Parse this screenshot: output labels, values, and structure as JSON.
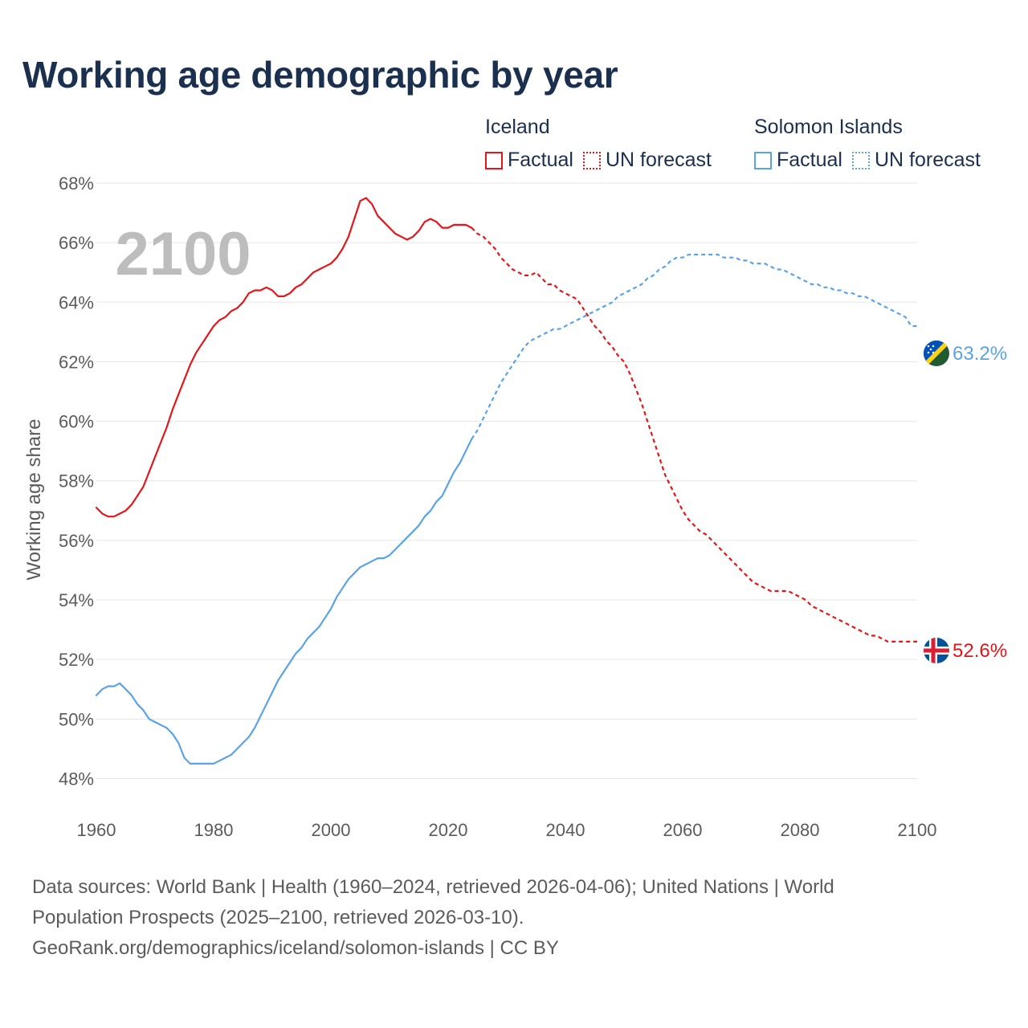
{
  "title": "Working age demographic by year",
  "legend": {
    "groups": [
      {
        "country": "Iceland",
        "color": "#e3161b",
        "factual_label": "Factual",
        "forecast_label": "UN forecast"
      },
      {
        "country": "Solomon Islands",
        "color": "#5ba3e6",
        "factual_label": "Factual",
        "forecast_label": "UN forecast"
      }
    ]
  },
  "year_watermark": "2100",
  "sources": {
    "line1": "Data sources: World Bank | Health (1960–2024, retrieved 2026-04-06); United Nations | World",
    "line2": "Population Prospects (2025–2100, retrieved 2026-03-10).",
    "line3": "GeoRank.org/demographics/iceland/solomon-islands | CC BY"
  },
  "chart_data": {
    "type": "line",
    "title": "Working age demographic by year",
    "xlabel": "",
    "ylabel": "Working age share",
    "xlim": [
      1960,
      2100
    ],
    "ylim": [
      47.5,
      68
    ],
    "x_ticks": [
      1960,
      1980,
      2000,
      2020,
      2040,
      2060,
      2080,
      2100
    ],
    "x_tick_labels": [
      "1960",
      "1980",
      "2000",
      "2020",
      "2040",
      "2060",
      "2080",
      "2100"
    ],
    "y_ticks": [
      48,
      50,
      52,
      54,
      56,
      58,
      60,
      62,
      64,
      66,
      68
    ],
    "y_tick_labels": [
      "48%",
      "50%",
      "52%",
      "54%",
      "56%",
      "58%",
      "60%",
      "62%",
      "64%",
      "66%",
      "68%"
    ],
    "grid": true,
    "factual_end_year": 2024,
    "series": [
      {
        "name": "Iceland",
        "color": "#e3161b",
        "end_label": "52.6%",
        "flag": "iceland-flag",
        "points": [
          [
            1960,
            57.1
          ],
          [
            1961,
            56.9
          ],
          [
            1962,
            56.8
          ],
          [
            1963,
            56.8
          ],
          [
            1964,
            56.9
          ],
          [
            1965,
            57.0
          ],
          [
            1966,
            57.2
          ],
          [
            1967,
            57.5
          ],
          [
            1968,
            57.8
          ],
          [
            1969,
            58.3
          ],
          [
            1970,
            58.8
          ],
          [
            1971,
            59.3
          ],
          [
            1972,
            59.8
          ],
          [
            1973,
            60.4
          ],
          [
            1974,
            60.9
          ],
          [
            1975,
            61.4
          ],
          [
            1976,
            61.9
          ],
          [
            1977,
            62.3
          ],
          [
            1978,
            62.6
          ],
          [
            1979,
            62.9
          ],
          [
            1980,
            63.2
          ],
          [
            1981,
            63.4
          ],
          [
            1982,
            63.5
          ],
          [
            1983,
            63.7
          ],
          [
            1984,
            63.8
          ],
          [
            1985,
            64.0
          ],
          [
            1986,
            64.3
          ],
          [
            1987,
            64.4
          ],
          [
            1988,
            64.4
          ],
          [
            1989,
            64.5
          ],
          [
            1990,
            64.4
          ],
          [
            1991,
            64.2
          ],
          [
            1992,
            64.2
          ],
          [
            1993,
            64.3
          ],
          [
            1994,
            64.5
          ],
          [
            1995,
            64.6
          ],
          [
            1996,
            64.8
          ],
          [
            1997,
            65.0
          ],
          [
            1998,
            65.1
          ],
          [
            1999,
            65.2
          ],
          [
            2000,
            65.3
          ],
          [
            2001,
            65.5
          ],
          [
            2002,
            65.8
          ],
          [
            2003,
            66.2
          ],
          [
            2004,
            66.8
          ],
          [
            2005,
            67.4
          ],
          [
            2006,
            67.5
          ],
          [
            2007,
            67.3
          ],
          [
            2008,
            66.9
          ],
          [
            2009,
            66.7
          ],
          [
            2010,
            66.5
          ],
          [
            2011,
            66.3
          ],
          [
            2012,
            66.2
          ],
          [
            2013,
            66.1
          ],
          [
            2014,
            66.2
          ],
          [
            2015,
            66.4
          ],
          [
            2016,
            66.7
          ],
          [
            2017,
            66.8
          ],
          [
            2018,
            66.7
          ],
          [
            2019,
            66.5
          ],
          [
            2020,
            66.5
          ],
          [
            2021,
            66.6
          ],
          [
            2022,
            66.6
          ],
          [
            2023,
            66.6
          ],
          [
            2024,
            66.5
          ],
          [
            2025,
            66.3
          ],
          [
            2026,
            66.2
          ],
          [
            2027,
            66.0
          ],
          [
            2028,
            65.8
          ],
          [
            2029,
            65.5
          ],
          [
            2030,
            65.3
          ],
          [
            2031,
            65.1
          ],
          [
            2032,
            65.0
          ],
          [
            2033,
            64.9
          ],
          [
            2034,
            64.9
          ],
          [
            2035,
            65.0
          ],
          [
            2036,
            64.8
          ],
          [
            2037,
            64.6
          ],
          [
            2038,
            64.6
          ],
          [
            2039,
            64.4
          ],
          [
            2040,
            64.3
          ],
          [
            2041,
            64.2
          ],
          [
            2042,
            64.1
          ],
          [
            2043,
            63.8
          ],
          [
            2044,
            63.5
          ],
          [
            2045,
            63.2
          ],
          [
            2046,
            63.0
          ],
          [
            2047,
            62.7
          ],
          [
            2048,
            62.5
          ],
          [
            2049,
            62.2
          ],
          [
            2050,
            62.0
          ],
          [
            2051,
            61.6
          ],
          [
            2052,
            61.1
          ],
          [
            2053,
            60.6
          ],
          [
            2054,
            60.0
          ],
          [
            2055,
            59.4
          ],
          [
            2056,
            58.8
          ],
          [
            2057,
            58.2
          ],
          [
            2058,
            57.8
          ],
          [
            2059,
            57.4
          ],
          [
            2060,
            57.0
          ],
          [
            2061,
            56.7
          ],
          [
            2062,
            56.5
          ],
          [
            2063,
            56.3
          ],
          [
            2064,
            56.2
          ],
          [
            2065,
            56.0
          ],
          [
            2066,
            55.8
          ],
          [
            2067,
            55.6
          ],
          [
            2068,
            55.4
          ],
          [
            2069,
            55.2
          ],
          [
            2070,
            55.0
          ],
          [
            2071,
            54.8
          ],
          [
            2072,
            54.6
          ],
          [
            2073,
            54.5
          ],
          [
            2074,
            54.4
          ],
          [
            2075,
            54.3
          ],
          [
            2076,
            54.3
          ],
          [
            2077,
            54.3
          ],
          [
            2078,
            54.3
          ],
          [
            2079,
            54.2
          ],
          [
            2080,
            54.1
          ],
          [
            2081,
            54.0
          ],
          [
            2082,
            53.8
          ],
          [
            2083,
            53.7
          ],
          [
            2084,
            53.6
          ],
          [
            2085,
            53.5
          ],
          [
            2086,
            53.4
          ],
          [
            2087,
            53.3
          ],
          [
            2088,
            53.2
          ],
          [
            2089,
            53.1
          ],
          [
            2090,
            53.0
          ],
          [
            2091,
            52.9
          ],
          [
            2092,
            52.8
          ],
          [
            2093,
            52.8
          ],
          [
            2094,
            52.7
          ],
          [
            2095,
            52.6
          ],
          [
            2096,
            52.6
          ],
          [
            2097,
            52.6
          ],
          [
            2098,
            52.6
          ],
          [
            2099,
            52.6
          ],
          [
            2100,
            52.6
          ]
        ]
      },
      {
        "name": "Solomon Islands",
        "color": "#5ba3e6",
        "end_label": "63.2%",
        "flag": "solomon-islands-flag",
        "points": [
          [
            1960,
            50.8
          ],
          [
            1961,
            51.0
          ],
          [
            1962,
            51.1
          ],
          [
            1963,
            51.1
          ],
          [
            1964,
            51.2
          ],
          [
            1965,
            51.0
          ],
          [
            1966,
            50.8
          ],
          [
            1967,
            50.5
          ],
          [
            1968,
            50.3
          ],
          [
            1969,
            50.0
          ],
          [
            1970,
            49.9
          ],
          [
            1971,
            49.8
          ],
          [
            1972,
            49.7
          ],
          [
            1973,
            49.5
          ],
          [
            1974,
            49.2
          ],
          [
            1975,
            48.7
          ],
          [
            1976,
            48.5
          ],
          [
            1977,
            48.5
          ],
          [
            1978,
            48.5
          ],
          [
            1979,
            48.5
          ],
          [
            1980,
            48.5
          ],
          [
            1981,
            48.6
          ],
          [
            1982,
            48.7
          ],
          [
            1983,
            48.8
          ],
          [
            1984,
            49.0
          ],
          [
            1985,
            49.2
          ],
          [
            1986,
            49.4
          ],
          [
            1987,
            49.7
          ],
          [
            1988,
            50.1
          ],
          [
            1989,
            50.5
          ],
          [
            1990,
            50.9
          ],
          [
            1991,
            51.3
          ],
          [
            1992,
            51.6
          ],
          [
            1993,
            51.9
          ],
          [
            1994,
            52.2
          ],
          [
            1995,
            52.4
          ],
          [
            1996,
            52.7
          ],
          [
            1997,
            52.9
          ],
          [
            1998,
            53.1
          ],
          [
            1999,
            53.4
          ],
          [
            2000,
            53.7
          ],
          [
            2001,
            54.1
          ],
          [
            2002,
            54.4
          ],
          [
            2003,
            54.7
          ],
          [
            2004,
            54.9
          ],
          [
            2005,
            55.1
          ],
          [
            2006,
            55.2
          ],
          [
            2007,
            55.3
          ],
          [
            2008,
            55.4
          ],
          [
            2009,
            55.4
          ],
          [
            2010,
            55.5
          ],
          [
            2011,
            55.7
          ],
          [
            2012,
            55.9
          ],
          [
            2013,
            56.1
          ],
          [
            2014,
            56.3
          ],
          [
            2015,
            56.5
          ],
          [
            2016,
            56.8
          ],
          [
            2017,
            57.0
          ],
          [
            2018,
            57.3
          ],
          [
            2019,
            57.5
          ],
          [
            2020,
            57.9
          ],
          [
            2021,
            58.3
          ],
          [
            2022,
            58.6
          ],
          [
            2023,
            59.0
          ],
          [
            2024,
            59.4
          ],
          [
            2025,
            59.7
          ],
          [
            2026,
            60.1
          ],
          [
            2027,
            60.5
          ],
          [
            2028,
            60.9
          ],
          [
            2029,
            61.3
          ],
          [
            2030,
            61.6
          ],
          [
            2031,
            61.9
          ],
          [
            2032,
            62.2
          ],
          [
            2033,
            62.5
          ],
          [
            2034,
            62.7
          ],
          [
            2035,
            62.8
          ],
          [
            2036,
            62.9
          ],
          [
            2037,
            63.0
          ],
          [
            2038,
            63.1
          ],
          [
            2039,
            63.1
          ],
          [
            2040,
            63.2
          ],
          [
            2041,
            63.3
          ],
          [
            2042,
            63.4
          ],
          [
            2043,
            63.5
          ],
          [
            2044,
            63.6
          ],
          [
            2045,
            63.7
          ],
          [
            2046,
            63.8
          ],
          [
            2047,
            63.9
          ],
          [
            2048,
            64.0
          ],
          [
            2049,
            64.2
          ],
          [
            2050,
            64.3
          ],
          [
            2051,
            64.4
          ],
          [
            2052,
            64.5
          ],
          [
            2053,
            64.6
          ],
          [
            2054,
            64.8
          ],
          [
            2055,
            64.9
          ],
          [
            2056,
            65.1
          ],
          [
            2057,
            65.2
          ],
          [
            2058,
            65.4
          ],
          [
            2059,
            65.5
          ],
          [
            2060,
            65.5
          ],
          [
            2061,
            65.6
          ],
          [
            2062,
            65.6
          ],
          [
            2063,
            65.6
          ],
          [
            2064,
            65.6
          ],
          [
            2065,
            65.6
          ],
          [
            2066,
            65.6
          ],
          [
            2067,
            65.5
          ],
          [
            2068,
            65.5
          ],
          [
            2069,
            65.5
          ],
          [
            2070,
            65.4
          ],
          [
            2071,
            65.4
          ],
          [
            2072,
            65.3
          ],
          [
            2073,
            65.3
          ],
          [
            2074,
            65.3
          ],
          [
            2075,
            65.2
          ],
          [
            2076,
            65.1
          ],
          [
            2077,
            65.1
          ],
          [
            2078,
            65.0
          ],
          [
            2079,
            64.9
          ],
          [
            2080,
            64.8
          ],
          [
            2081,
            64.7
          ],
          [
            2082,
            64.6
          ],
          [
            2083,
            64.6
          ],
          [
            2084,
            64.5
          ],
          [
            2085,
            64.5
          ],
          [
            2086,
            64.4
          ],
          [
            2087,
            64.4
          ],
          [
            2088,
            64.3
          ],
          [
            2089,
            64.3
          ],
          [
            2090,
            64.2
          ],
          [
            2091,
            64.2
          ],
          [
            2092,
            64.1
          ],
          [
            2093,
            64.0
          ],
          [
            2094,
            63.9
          ],
          [
            2095,
            63.8
          ],
          [
            2096,
            63.7
          ],
          [
            2097,
            63.6
          ],
          [
            2098,
            63.5
          ],
          [
            2099,
            63.2
          ],
          [
            2100,
            63.2
          ]
        ]
      }
    ]
  }
}
